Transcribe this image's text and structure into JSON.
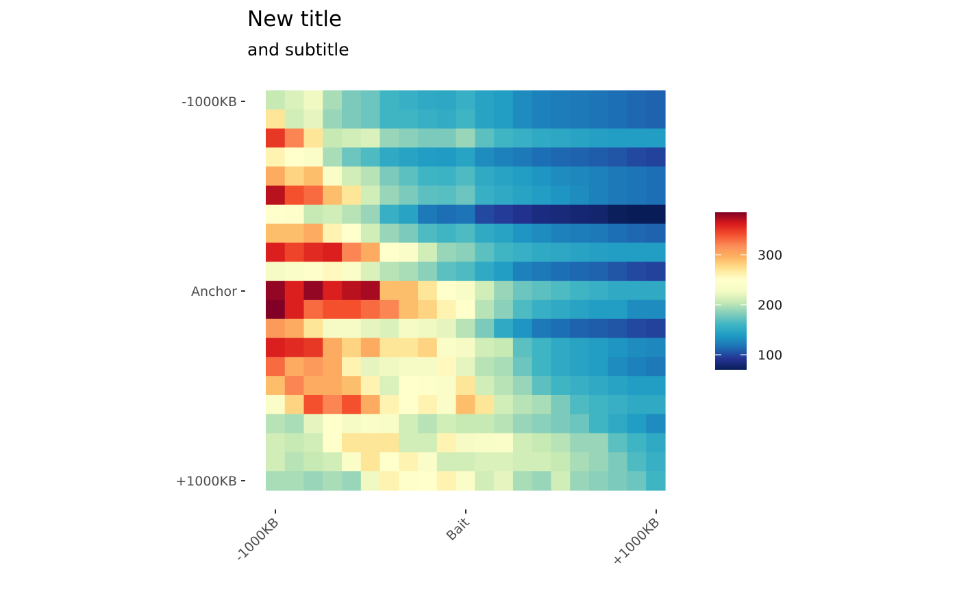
{
  "title": "New title",
  "subtitle": "and subtitle",
  "colors": {
    "scale": [
      "#081d58",
      "#253494",
      "#1d6fb5",
      "#1e9ac4",
      "#3fb5c4",
      "#82cdbb",
      "#c7e9b4",
      "#f5fbc4",
      "#ffffcc",
      "#fee391",
      "#fdb462",
      "#fc8d59",
      "#f4502e",
      "#d7191c",
      "#800026"
    ]
  },
  "chart_data": {
    "type": "heatmap",
    "title": "New title",
    "subtitle": "and subtitle",
    "xlabel": "",
    "ylabel": "",
    "x_ticks": [
      "-1000KB",
      "Bait",
      "+1000KB"
    ],
    "y_ticks": [
      "-1000KB",
      "Anchor",
      "+1000KB"
    ],
    "legend": {
      "position": "right",
      "min": 70,
      "max": 385,
      "ticks": [
        100,
        200,
        300
      ]
    },
    "values": [
      [
        205,
        215,
        225,
        195,
        180,
        175,
        160,
        155,
        150,
        148,
        155,
        145,
        140,
        130,
        125,
        122,
        120,
        118,
        115,
        112,
        110
      ],
      [
        270,
        210,
        220,
        190,
        180,
        175,
        160,
        160,
        155,
        152,
        160,
        145,
        140,
        130,
        125,
        122,
        120,
        118,
        115,
        112,
        110
      ],
      [
        350,
        320,
        270,
        205,
        210,
        215,
        190,
        185,
        180,
        180,
        190,
        170,
        160,
        155,
        150,
        148,
        145,
        142,
        140,
        140,
        140
      ],
      [
        260,
        250,
        240,
        195,
        175,
        165,
        150,
        145,
        140,
        138,
        145,
        130,
        125,
        120,
        115,
        112,
        110,
        108,
        105,
        100,
        98
      ],
      [
        300,
        280,
        290,
        240,
        210,
        200,
        180,
        170,
        160,
        158,
        165,
        150,
        145,
        140,
        135,
        130,
        128,
        125,
        120,
        118,
        115
      ],
      [
        370,
        340,
        330,
        290,
        270,
        210,
        190,
        180,
        170,
        168,
        175,
        155,
        150,
        145,
        140,
        135,
        130,
        125,
        120,
        118,
        115
      ],
      [
        250,
        245,
        205,
        210,
        200,
        190,
        155,
        145,
        120,
        115,
        118,
        100,
        95,
        90,
        85,
        83,
        80,
        78,
        72,
        70,
        70
      ],
      [
        290,
        290,
        300,
        260,
        250,
        210,
        190,
        180,
        165,
        160,
        165,
        150,
        145,
        135,
        130,
        125,
        122,
        120,
        115,
        112,
        110
      ],
      [
        360,
        345,
        355,
        360,
        320,
        300,
        250,
        240,
        210,
        190,
        185,
        170,
        160,
        155,
        150,
        148,
        145,
        142,
        140,
        140,
        140
      ],
      [
        230,
        240,
        245,
        255,
        240,
        215,
        200,
        195,
        185,
        170,
        165,
        150,
        140,
        125,
        120,
        115,
        112,
        110,
        105,
        100,
        98
      ],
      [
        380,
        360,
        380,
        360,
        370,
        375,
        290,
        290,
        270,
        250,
        235,
        210,
        190,
        175,
        170,
        165,
        160,
        155,
        150,
        150,
        150
      ],
      [
        385,
        360,
        330,
        340,
        340,
        330,
        320,
        290,
        280,
        260,
        250,
        200,
        185,
        165,
        155,
        150,
        145,
        140,
        140,
        130,
        130
      ],
      [
        310,
        300,
        270,
        230,
        230,
        220,
        215,
        230,
        225,
        220,
        200,
        180,
        150,
        135,
        120,
        115,
        110,
        108,
        105,
        100,
        98
      ],
      [
        360,
        355,
        350,
        300,
        280,
        300,
        270,
        270,
        280,
        240,
        230,
        210,
        205,
        170,
        160,
        150,
        145,
        140,
        135,
        130,
        128
      ],
      [
        330,
        300,
        310,
        300,
        260,
        220,
        225,
        230,
        230,
        255,
        220,
        200,
        195,
        175,
        160,
        150,
        145,
        140,
        130,
        125,
        120
      ],
      [
        290,
        320,
        300,
        300,
        290,
        260,
        215,
        250,
        245,
        240,
        270,
        210,
        200,
        190,
        170,
        160,
        155,
        150,
        145,
        140,
        140
      ],
      [
        240,
        280,
        340,
        320,
        340,
        300,
        260,
        250,
        260,
        240,
        290,
        270,
        210,
        200,
        195,
        180,
        165,
        160,
        155,
        150,
        150
      ],
      [
        200,
        195,
        220,
        250,
        230,
        240,
        235,
        210,
        200,
        210,
        205,
        205,
        200,
        190,
        185,
        180,
        175,
        160,
        150,
        140,
        130
      ],
      [
        210,
        205,
        210,
        250,
        270,
        270,
        270,
        210,
        210,
        260,
        230,
        235,
        240,
        210,
        205,
        200,
        190,
        190,
        170,
        160,
        150
      ],
      [
        210,
        200,
        205,
        210,
        240,
        270,
        250,
        260,
        240,
        210,
        210,
        215,
        215,
        210,
        210,
        205,
        195,
        190,
        180,
        165,
        155
      ],
      [
        195,
        195,
        190,
        195,
        190,
        225,
        260,
        245,
        250,
        260,
        240,
        210,
        220,
        195,
        190,
        210,
        190,
        185,
        180,
        175,
        160
      ]
    ]
  }
}
